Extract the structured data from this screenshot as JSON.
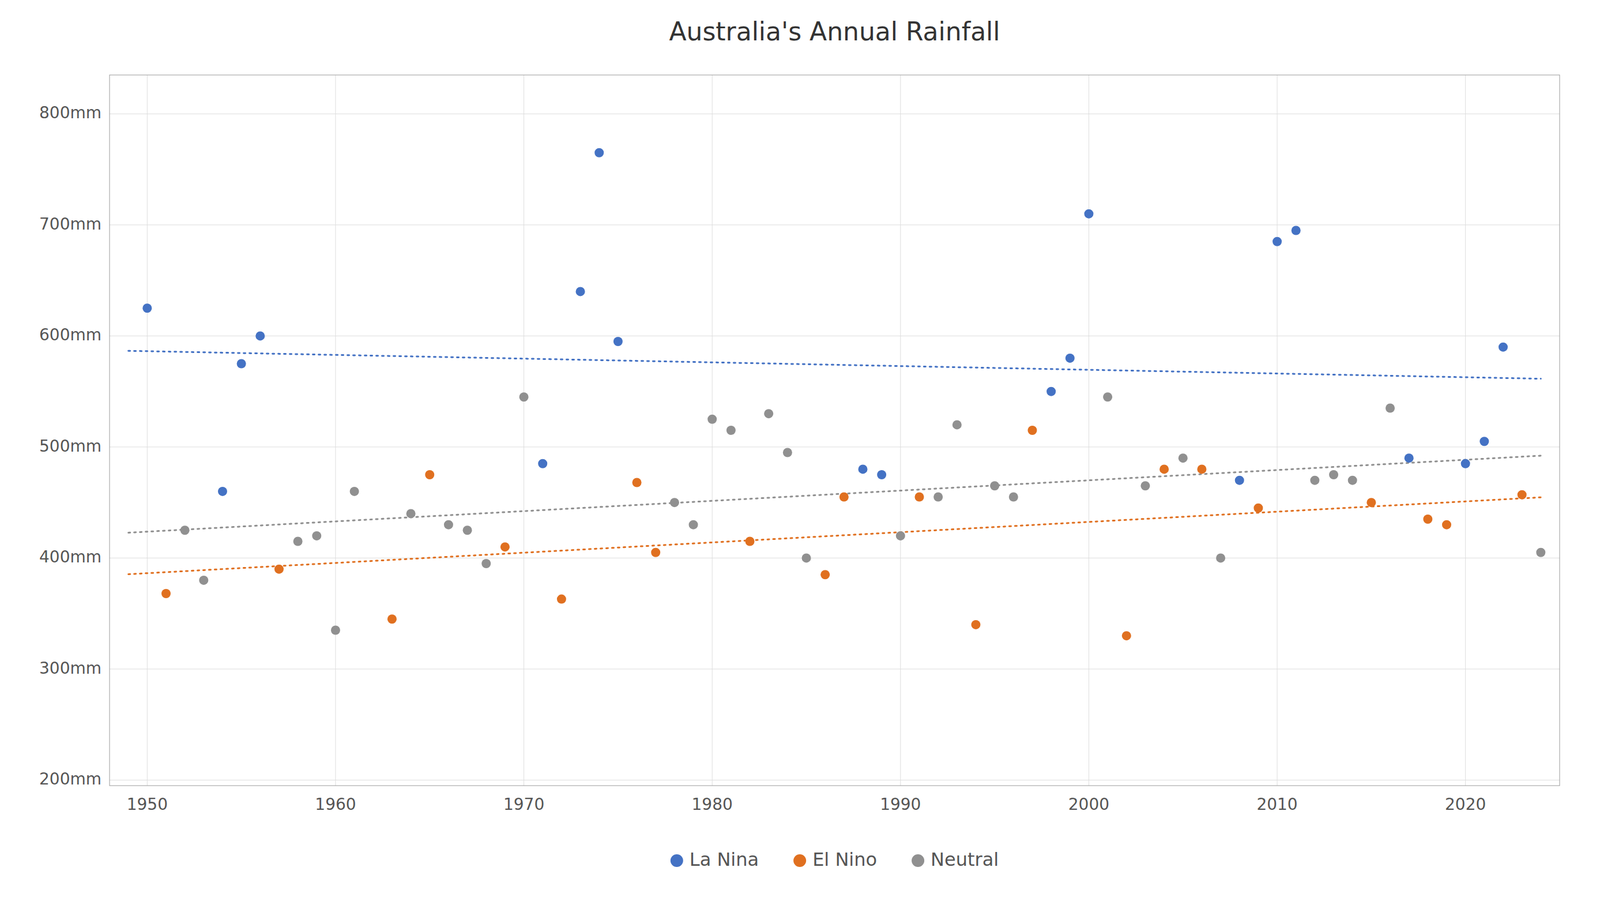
{
  "chart_data": {
    "type": "scatter",
    "title": "Australia's Annual Rainfall",
    "xlim": [
      1948,
      2025
    ],
    "ylim": [
      195,
      835
    ],
    "xticks": [
      1950,
      1960,
      1970,
      1980,
      1990,
      2000,
      2010,
      2020
    ],
    "yticks": [
      {
        "value": 200,
        "label": "200mm"
      },
      {
        "value": 300,
        "label": "300mm"
      },
      {
        "value": 400,
        "label": "400mm"
      },
      {
        "value": 500,
        "label": "500mm"
      },
      {
        "value": 600,
        "label": "600mm"
      },
      {
        "value": 700,
        "label": "700mm"
      },
      {
        "value": 800,
        "label": "800mm"
      }
    ],
    "grid": true,
    "legend": "bottom",
    "series": [
      {
        "name": "La Nina",
        "color": "#4472C4",
        "x": [
          1950,
          1954,
          1955,
          1956,
          1971,
          1973,
          1974,
          1975,
          1988,
          1989,
          1998,
          1999,
          2000,
          2008,
          2010,
          2011,
          2017,
          2020,
          2021,
          2022
        ],
        "values": [
          625,
          460,
          575,
          600,
          485,
          640,
          765,
          595,
          480,
          475,
          550,
          580,
          710,
          470,
          685,
          695,
          490,
          485,
          505,
          590
        ],
        "trend": {
          "line_style": "dotted",
          "x": [
            1949,
            2024
          ],
          "values": [
            586.59,
            561.45
          ]
        }
      },
      {
        "name": "El Nino",
        "color": "#E07020",
        "x": [
          1951,
          1957,
          1963,
          1965,
          1969,
          1972,
          1976,
          1977,
          1982,
          1986,
          1987,
          1991,
          1994,
          1997,
          2002,
          2004,
          2006,
          2009,
          2015,
          2018,
          2019,
          2023
        ],
        "values": [
          368,
          390,
          345,
          475,
          410,
          363,
          468,
          405,
          415,
          385,
          455,
          455,
          340,
          515,
          330,
          480,
          480,
          445,
          450,
          435,
          430,
          457
        ],
        "trend": {
          "line_style": "dotted",
          "x": [
            1949,
            2024
          ],
          "values": [
            385.4,
            454.65
          ]
        }
      },
      {
        "name": "Neutral",
        "color": "#909090",
        "x": [
          1952,
          1953,
          1958,
          1959,
          1960,
          1961,
          1964,
          1966,
          1967,
          1968,
          1970,
          1978,
          1979,
          1980,
          1981,
          1983,
          1984,
          1985,
          1990,
          1992,
          1993,
          1995,
          1996,
          2001,
          2003,
          2005,
          2007,
          2012,
          2013,
          2014,
          2016,
          2024
        ],
        "values": [
          425,
          380,
          415,
          420,
          335,
          460,
          440,
          430,
          425,
          395,
          545,
          450,
          430,
          525,
          515,
          530,
          495,
          400,
          420,
          455,
          520,
          465,
          455,
          545,
          465,
          490,
          400,
          470,
          475,
          470,
          535,
          405
        ],
        "trend": {
          "line_style": "dotted",
          "x": [
            1949,
            2024
          ],
          "values": [
            422.8,
            492.17
          ]
        }
      }
    ]
  }
}
